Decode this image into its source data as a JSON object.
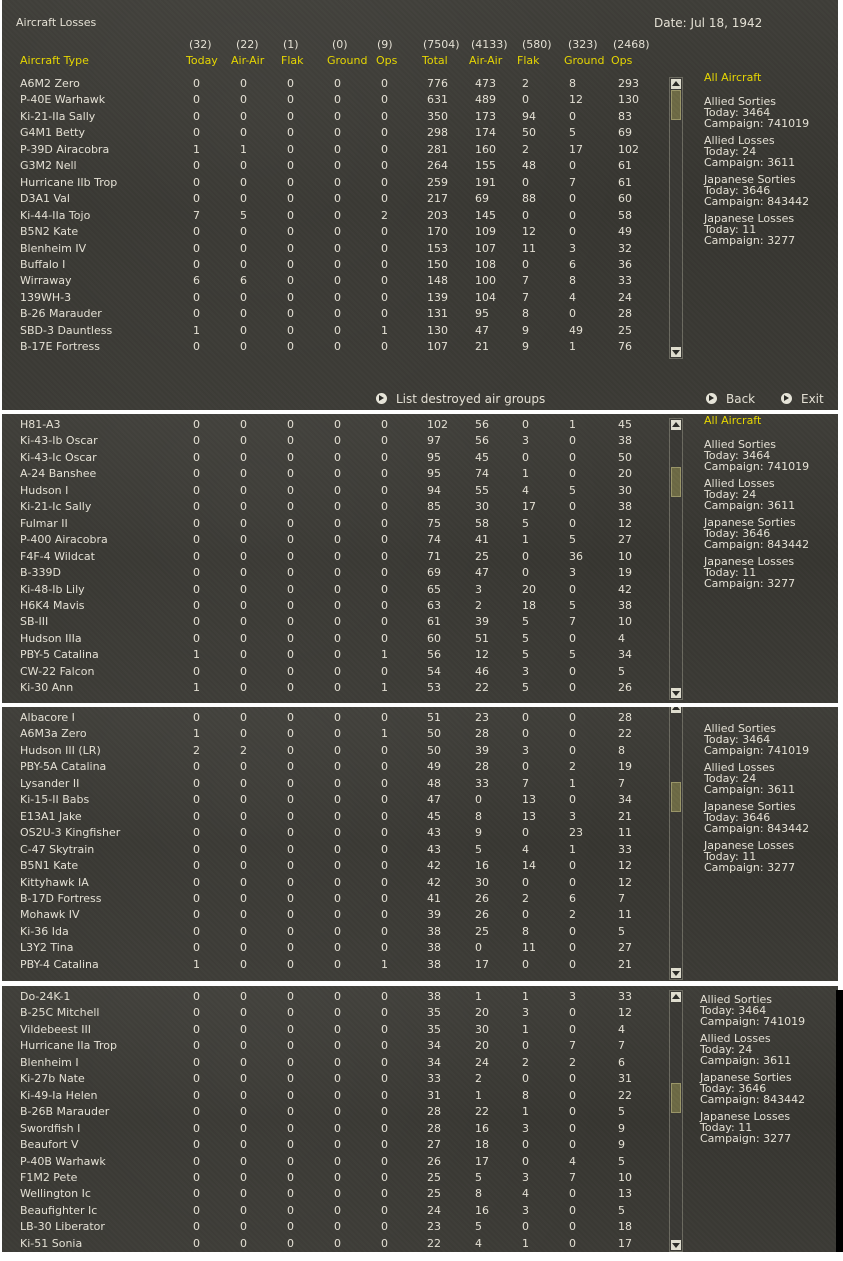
{
  "window": {
    "title": "Aircraft Losses",
    "date": "Date: Jul 18, 1942"
  },
  "columns": [
    {
      "count": "",
      "label": "Aircraft Type"
    },
    {
      "count": "(32)",
      "label": "Today"
    },
    {
      "count": "(22)",
      "label": "Air-Air"
    },
    {
      "count": "(1)",
      "label": "Flak"
    },
    {
      "count": "(0)",
      "label": "Ground"
    },
    {
      "count": "(9)",
      "label": "Ops"
    },
    {
      "count": "(7504)",
      "label": "Total"
    },
    {
      "count": "(4133)",
      "label": "Air-Air"
    },
    {
      "count": "(580)",
      "label": "Flak"
    },
    {
      "count": "(323)",
      "label": "Ground"
    },
    {
      "count": "(2468)",
      "label": "Ops"
    }
  ],
  "sidebar": {
    "all_aircraft": "All Aircraft",
    "groups": [
      {
        "title": "Allied Sorties",
        "today": "Today:  3464",
        "campaign": "Campaign: 741019"
      },
      {
        "title": "Allied Losses",
        "today": "Today:  24",
        "campaign": "Campaign: 3611"
      },
      {
        "title": "Japanese Sorties",
        "today": "Today:  3646",
        "campaign": "Campaign: 843442"
      },
      {
        "title": "Japanese Losses",
        "today": "Today:  11",
        "campaign": "Campaign: 3277"
      }
    ]
  },
  "footer": {
    "list_destroyed": "List destroyed air groups",
    "back": "Back",
    "exit": "Exit"
  },
  "panels": [
    {
      "rows": [
        [
          "A6M2 Zero",
          "0",
          "0",
          "0",
          "0",
          "0",
          "776",
          "473",
          "2",
          "8",
          "293"
        ],
        [
          "P-40E Warhawk",
          "0",
          "0",
          "0",
          "0",
          "0",
          "631",
          "489",
          "0",
          "12",
          "130"
        ],
        [
          "Ki-21-IIa Sally",
          "0",
          "0",
          "0",
          "0",
          "0",
          "350",
          "173",
          "94",
          "0",
          "83"
        ],
        [
          "G4M1 Betty",
          "0",
          "0",
          "0",
          "0",
          "0",
          "298",
          "174",
          "50",
          "5",
          "69"
        ],
        [
          "P-39D Airacobra",
          "1",
          "1",
          "0",
          "0",
          "0",
          "281",
          "160",
          "2",
          "17",
          "102"
        ],
        [
          "G3M2 Nell",
          "0",
          "0",
          "0",
          "0",
          "0",
          "264",
          "155",
          "48",
          "0",
          "61"
        ],
        [
          "Hurricane IIb Trop",
          "0",
          "0",
          "0",
          "0",
          "0",
          "259",
          "191",
          "0",
          "7",
          "61"
        ],
        [
          "D3A1 Val",
          "0",
          "0",
          "0",
          "0",
          "0",
          "217",
          "69",
          "88",
          "0",
          "60"
        ],
        [
          "Ki-44-IIa Tojo",
          "7",
          "5",
          "0",
          "0",
          "2",
          "203",
          "145",
          "0",
          "0",
          "58"
        ],
        [
          "B5N2 Kate",
          "0",
          "0",
          "0",
          "0",
          "0",
          "170",
          "109",
          "12",
          "0",
          "49"
        ],
        [
          "Blenheim IV",
          "0",
          "0",
          "0",
          "0",
          "0",
          "153",
          "107",
          "11",
          "3",
          "32"
        ],
        [
          "Buffalo I",
          "0",
          "0",
          "0",
          "0",
          "0",
          "150",
          "108",
          "0",
          "6",
          "36"
        ],
        [
          "Wirraway",
          "6",
          "6",
          "0",
          "0",
          "0",
          "148",
          "100",
          "7",
          "8",
          "33"
        ],
        [
          "139WH-3",
          "0",
          "0",
          "0",
          "0",
          "0",
          "139",
          "104",
          "7",
          "4",
          "24"
        ],
        [
          "B-26 Marauder",
          "0",
          "0",
          "0",
          "0",
          "0",
          "131",
          "95",
          "8",
          "0",
          "28"
        ],
        [
          "SBD-3 Dauntless",
          "1",
          "0",
          "0",
          "0",
          "1",
          "130",
          "47",
          "9",
          "49",
          "25"
        ],
        [
          "B-17E Fortress",
          "0",
          "0",
          "0",
          "0",
          "0",
          "107",
          "21",
          "9",
          "1",
          "76"
        ]
      ]
    },
    {
      "rows": [
        [
          "H81-A3",
          "0",
          "0",
          "0",
          "0",
          "0",
          "102",
          "56",
          "0",
          "1",
          "45"
        ],
        [
          "Ki-43-Ib Oscar",
          "0",
          "0",
          "0",
          "0",
          "0",
          "97",
          "56",
          "3",
          "0",
          "38"
        ],
        [
          "Ki-43-Ic Oscar",
          "0",
          "0",
          "0",
          "0",
          "0",
          "95",
          "45",
          "0",
          "0",
          "50"
        ],
        [
          "A-24 Banshee",
          "0",
          "0",
          "0",
          "0",
          "0",
          "95",
          "74",
          "1",
          "0",
          "20"
        ],
        [
          "Hudson I",
          "0",
          "0",
          "0",
          "0",
          "0",
          "94",
          "55",
          "4",
          "5",
          "30"
        ],
        [
          "Ki-21-Ic Sally",
          "0",
          "0",
          "0",
          "0",
          "0",
          "85",
          "30",
          "17",
          "0",
          "38"
        ],
        [
          "Fulmar II",
          "0",
          "0",
          "0",
          "0",
          "0",
          "75",
          "58",
          "5",
          "0",
          "12"
        ],
        [
          "P-400 Airacobra",
          "0",
          "0",
          "0",
          "0",
          "0",
          "74",
          "41",
          "1",
          "5",
          "27"
        ],
        [
          "F4F-4 Wildcat",
          "0",
          "0",
          "0",
          "0",
          "0",
          "71",
          "25",
          "0",
          "36",
          "10"
        ],
        [
          "B-339D",
          "0",
          "0",
          "0",
          "0",
          "0",
          "69",
          "47",
          "0",
          "3",
          "19"
        ],
        [
          "Ki-48-Ib Lily",
          "0",
          "0",
          "0",
          "0",
          "0",
          "65",
          "3",
          "20",
          "0",
          "42"
        ],
        [
          "H6K4 Mavis",
          "0",
          "0",
          "0",
          "0",
          "0",
          "63",
          "2",
          "18",
          "5",
          "38"
        ],
        [
          "SB-III",
          "0",
          "0",
          "0",
          "0",
          "0",
          "61",
          "39",
          "5",
          "7",
          "10"
        ],
        [
          "Hudson IIIa",
          "0",
          "0",
          "0",
          "0",
          "0",
          "60",
          "51",
          "5",
          "0",
          "4"
        ],
        [
          "PBY-5 Catalina",
          "1",
          "0",
          "0",
          "0",
          "1",
          "56",
          "12",
          "5",
          "5",
          "34"
        ],
        [
          "CW-22 Falcon",
          "0",
          "0",
          "0",
          "0",
          "0",
          "54",
          "46",
          "3",
          "0",
          "5"
        ],
        [
          "Ki-30 Ann",
          "1",
          "0",
          "0",
          "0",
          "1",
          "53",
          "22",
          "5",
          "0",
          "26"
        ]
      ]
    },
    {
      "rows": [
        [
          "Albacore I",
          "0",
          "0",
          "0",
          "0",
          "0",
          "51",
          "23",
          "0",
          "0",
          "28"
        ],
        [
          "A6M3a Zero",
          "1",
          "0",
          "0",
          "0",
          "1",
          "50",
          "28",
          "0",
          "0",
          "22"
        ],
        [
          "Hudson III (LR)",
          "2",
          "2",
          "0",
          "0",
          "0",
          "50",
          "39",
          "3",
          "0",
          "8"
        ],
        [
          "PBY-5A Catalina",
          "0",
          "0",
          "0",
          "0",
          "0",
          "49",
          "28",
          "0",
          "2",
          "19"
        ],
        [
          "Lysander II",
          "0",
          "0",
          "0",
          "0",
          "0",
          "48",
          "33",
          "7",
          "1",
          "7"
        ],
        [
          "Ki-15-II Babs",
          "0",
          "0",
          "0",
          "0",
          "0",
          "47",
          "0",
          "13",
          "0",
          "34"
        ],
        [
          "E13A1 Jake",
          "0",
          "0",
          "0",
          "0",
          "0",
          "45",
          "8",
          "13",
          "3",
          "21"
        ],
        [
          "OS2U-3 Kingfisher",
          "0",
          "0",
          "0",
          "0",
          "0",
          "43",
          "9",
          "0",
          "23",
          "11"
        ],
        [
          "C-47 Skytrain",
          "0",
          "0",
          "0",
          "0",
          "0",
          "43",
          "5",
          "4",
          "1",
          "33"
        ],
        [
          "B5N1 Kate",
          "0",
          "0",
          "0",
          "0",
          "0",
          "42",
          "16",
          "14",
          "0",
          "12"
        ],
        [
          "Kittyhawk IA",
          "0",
          "0",
          "0",
          "0",
          "0",
          "42",
          "30",
          "0",
          "0",
          "12"
        ],
        [
          "B-17D Fortress",
          "0",
          "0",
          "0",
          "0",
          "0",
          "41",
          "26",
          "2",
          "6",
          "7"
        ],
        [
          "Mohawk IV",
          "0",
          "0",
          "0",
          "0",
          "0",
          "39",
          "26",
          "0",
          "2",
          "11"
        ],
        [
          "Ki-36 Ida",
          "0",
          "0",
          "0",
          "0",
          "0",
          "38",
          "25",
          "8",
          "0",
          "5"
        ],
        [
          "L3Y2 Tina",
          "0",
          "0",
          "0",
          "0",
          "0",
          "38",
          "0",
          "11",
          "0",
          "27"
        ],
        [
          "PBY-4 Catalina",
          "1",
          "0",
          "0",
          "0",
          "1",
          "38",
          "17",
          "0",
          "0",
          "21"
        ]
      ]
    },
    {
      "rows": [
        [
          "Do-24K-1",
          "0",
          "0",
          "0",
          "0",
          "0",
          "38",
          "1",
          "1",
          "3",
          "33"
        ],
        [
          "B-25C Mitchell",
          "0",
          "0",
          "0",
          "0",
          "0",
          "35",
          "20",
          "3",
          "0",
          "12"
        ],
        [
          "Vildebeest III",
          "0",
          "0",
          "0",
          "0",
          "0",
          "35",
          "30",
          "1",
          "0",
          "4"
        ],
        [
          "Hurricane IIa Trop",
          "0",
          "0",
          "0",
          "0",
          "0",
          "34",
          "20",
          "0",
          "7",
          "7"
        ],
        [
          "Blenheim I",
          "0",
          "0",
          "0",
          "0",
          "0",
          "34",
          "24",
          "2",
          "2",
          "6"
        ],
        [
          "Ki-27b Nate",
          "0",
          "0",
          "0",
          "0",
          "0",
          "33",
          "2",
          "0",
          "0",
          "31"
        ],
        [
          "Ki-49-Ia Helen",
          "0",
          "0",
          "0",
          "0",
          "0",
          "31",
          "1",
          "8",
          "0",
          "22"
        ],
        [
          "B-26B Marauder",
          "0",
          "0",
          "0",
          "0",
          "0",
          "28",
          "22",
          "1",
          "0",
          "5"
        ],
        [
          "Swordfish I",
          "0",
          "0",
          "0",
          "0",
          "0",
          "28",
          "16",
          "3",
          "0",
          "9"
        ],
        [
          "Beaufort V",
          "0",
          "0",
          "0",
          "0",
          "0",
          "27",
          "18",
          "0",
          "0",
          "9"
        ],
        [
          "P-40B Warhawk",
          "0",
          "0",
          "0",
          "0",
          "0",
          "26",
          "17",
          "0",
          "4",
          "5"
        ],
        [
          "F1M2 Pete",
          "0",
          "0",
          "0",
          "0",
          "0",
          "25",
          "5",
          "3",
          "7",
          "10"
        ],
        [
          "Wellington Ic",
          "0",
          "0",
          "0",
          "0",
          "0",
          "25",
          "8",
          "4",
          "0",
          "13"
        ],
        [
          "Beaufighter Ic",
          "0",
          "0",
          "0",
          "0",
          "0",
          "24",
          "16",
          "3",
          "0",
          "5"
        ],
        [
          "LB-30 Liberator",
          "0",
          "0",
          "0",
          "0",
          "0",
          "23",
          "5",
          "0",
          "0",
          "18"
        ],
        [
          "Ki-51 Sonia",
          "0",
          "0",
          "0",
          "0",
          "0",
          "22",
          "4",
          "1",
          "0",
          "17"
        ]
      ]
    }
  ]
}
